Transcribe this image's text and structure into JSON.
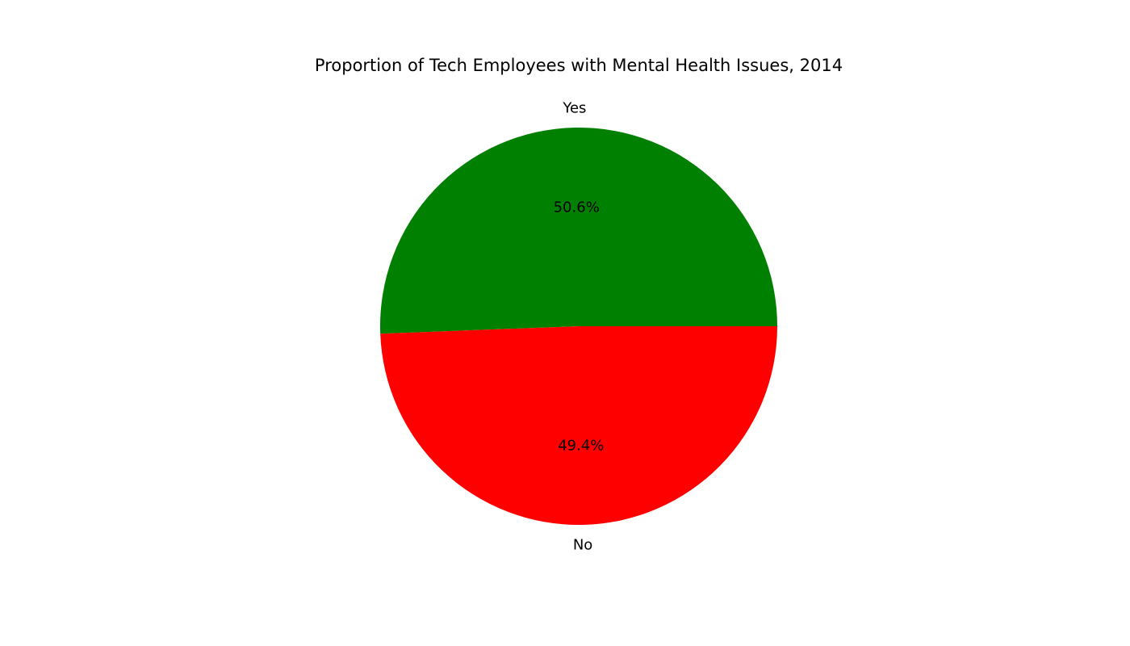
{
  "chart_data": {
    "type": "pie",
    "title": "Proportion of Tech Employees with Mental Health Issues, 2014",
    "slices": [
      {
        "label": "Yes",
        "value": 50.6,
        "pct_label": "50.6%",
        "color": "#008000"
      },
      {
        "label": "No",
        "value": 49.4,
        "pct_label": "49.4%",
        "color": "#ff0000"
      }
    ],
    "start_angle_deg": 0,
    "direction": "counterclockwise"
  }
}
